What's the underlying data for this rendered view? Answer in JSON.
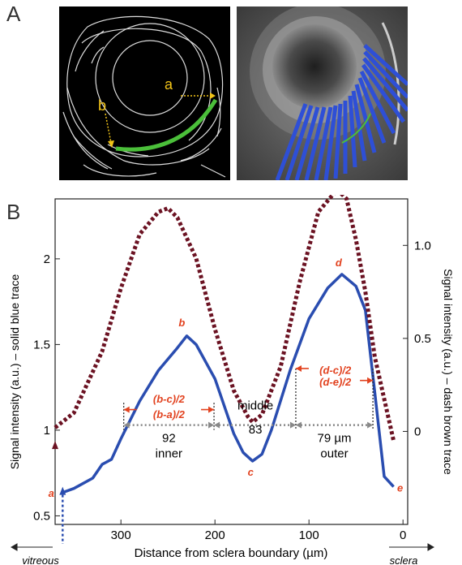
{
  "panels": {
    "a": "A",
    "b": "B"
  },
  "panel_a": {
    "edge_labels": {
      "a": "a",
      "b": "b"
    }
  },
  "chart_data": {
    "type": "line",
    "xlabel": "Distance from sclera boundary (µm)",
    "ylabel_left": "Signal intensity (a.u.) – solid blue trace",
    "ylabel_right": "Signal intensity (a.u.) – dash brown trace",
    "x_direction_labels": {
      "left": "vitreous",
      "right": "sclera"
    },
    "xlim": [
      370,
      -5
    ],
    "ylim_left": [
      0.45,
      2.35
    ],
    "ylim_right": [
      -0.5,
      1.25
    ],
    "x_ticks": [
      300,
      200,
      100,
      0
    ],
    "x_tick_labels": [
      "300",
      "200",
      "100",
      "0"
    ],
    "y_left_ticks": [
      0.5,
      1,
      1.5,
      2
    ],
    "y_left_tick_labels": [
      "0.5",
      "1",
      "1.5",
      "2"
    ],
    "y_right_ticks": [
      0,
      0.5,
      1.0
    ],
    "y_right_tick_labels": [
      "0",
      "0.5",
      "1.0"
    ],
    "series": [
      {
        "style": "solid",
        "color": "#2a4db0",
        "axis": "left",
        "x": [
          360,
          350,
          330,
          320,
          310,
          300,
          280,
          260,
          240,
          230,
          220,
          200,
          180,
          170,
          160,
          150,
          140,
          120,
          100,
          80,
          65,
          50,
          40,
          30,
          20,
          10
        ],
        "y": [
          0.64,
          0.66,
          0.72,
          0.8,
          0.83,
          0.95,
          1.17,
          1.35,
          1.48,
          1.55,
          1.5,
          1.3,
          0.98,
          0.87,
          0.82,
          0.86,
          1.0,
          1.35,
          1.65,
          1.83,
          1.91,
          1.84,
          1.7,
          1.22,
          0.73,
          0.67
        ]
      },
      {
        "style": "dotted",
        "color": "#6b1222",
        "axis": "right",
        "x": [
          370,
          350,
          320,
          300,
          280,
          260,
          250,
          240,
          220,
          200,
          180,
          165,
          160,
          150,
          130,
          110,
          90,
          70,
          60,
          50,
          40,
          30,
          10
        ],
        "y": [
          0.02,
          0.1,
          0.43,
          0.77,
          1.06,
          1.18,
          1.2,
          1.15,
          0.93,
          0.55,
          0.22,
          0.08,
          0.05,
          0.09,
          0.35,
          0.8,
          1.18,
          1.3,
          1.25,
          1.03,
          0.75,
          0.4,
          -0.05
        ]
      }
    ],
    "points": [
      {
        "label": "a",
        "x": 362,
        "y": 0.63
      },
      {
        "label": "b",
        "x": 230,
        "y": 1.55
      },
      {
        "label": "c",
        "x": 162,
        "y": 0.82
      },
      {
        "label": "d",
        "x": 65,
        "y": 1.91
      },
      {
        "label": "e",
        "x": 10,
        "y": 0.67
      }
    ],
    "annotations": {
      "b_minus_a": "(b-a)/2",
      "b_minus_c": "(b-c)/2",
      "d_minus_c": "(d-c)/2",
      "d_minus_e": "(d-e)/2",
      "middle": "middle",
      "w_inner": "92",
      "w_middle": "83",
      "w_outer": "79 µm",
      "inner": "inner",
      "outer": "outer"
    }
  }
}
